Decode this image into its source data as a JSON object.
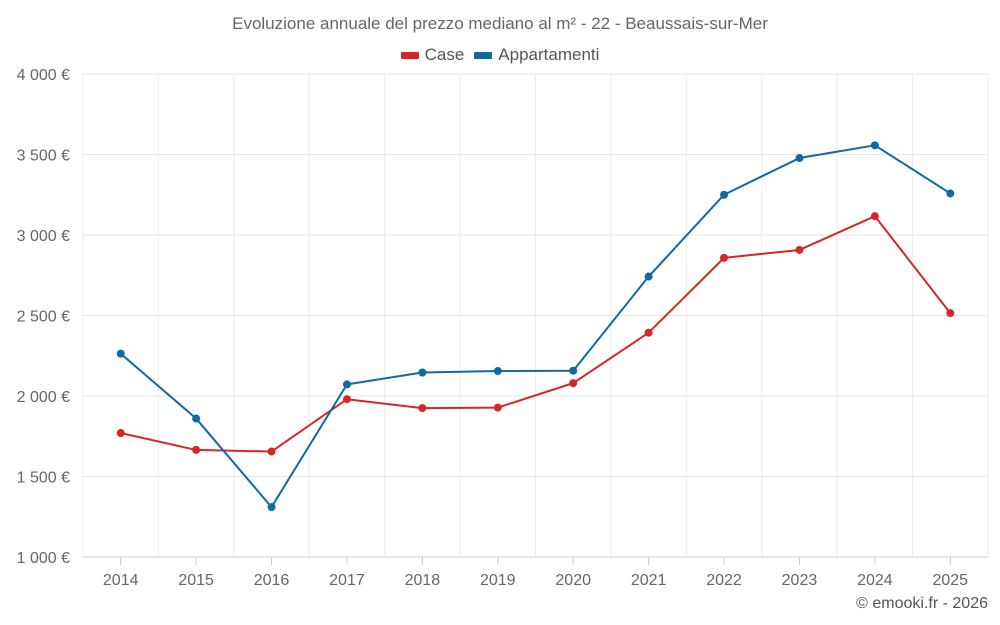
{
  "chart_data": {
    "type": "line",
    "title": "Evoluzione annuale del prezzo mediano al m² - 22 - Beaussais-sur-Mer",
    "categories": [
      "2014",
      "2015",
      "2016",
      "2017",
      "2018",
      "2019",
      "2020",
      "2021",
      "2022",
      "2023",
      "2024",
      "2025"
    ],
    "series": [
      {
        "name": "Case",
        "color": "#d62728",
        "values": [
          1770,
          1665,
          1655,
          1980,
          1925,
          1928,
          2080,
          2393,
          2858,
          2907,
          3117,
          2515
        ]
      },
      {
        "name": "Appartamenti",
        "color": "#0e6aa0",
        "values": [
          2263,
          1860,
          1310,
          2072,
          2146,
          2155,
          2157,
          2742,
          3250,
          3478,
          3557,
          3258
        ]
      }
    ],
    "ylim": [
      1000,
      4000
    ],
    "yticks": [
      1000,
      1500,
      2000,
      2500,
      3000,
      3500,
      4000
    ],
    "ytick_labels": [
      "1 000 €",
      "1 500 €",
      "2 000 €",
      "2 500 €",
      "3 000 €",
      "3 500 €",
      "4 000 €"
    ],
    "xlabel": "",
    "ylabel": "",
    "grid": true,
    "legend_position": "top-center"
  },
  "credit": "© emooki.fr - 2026"
}
